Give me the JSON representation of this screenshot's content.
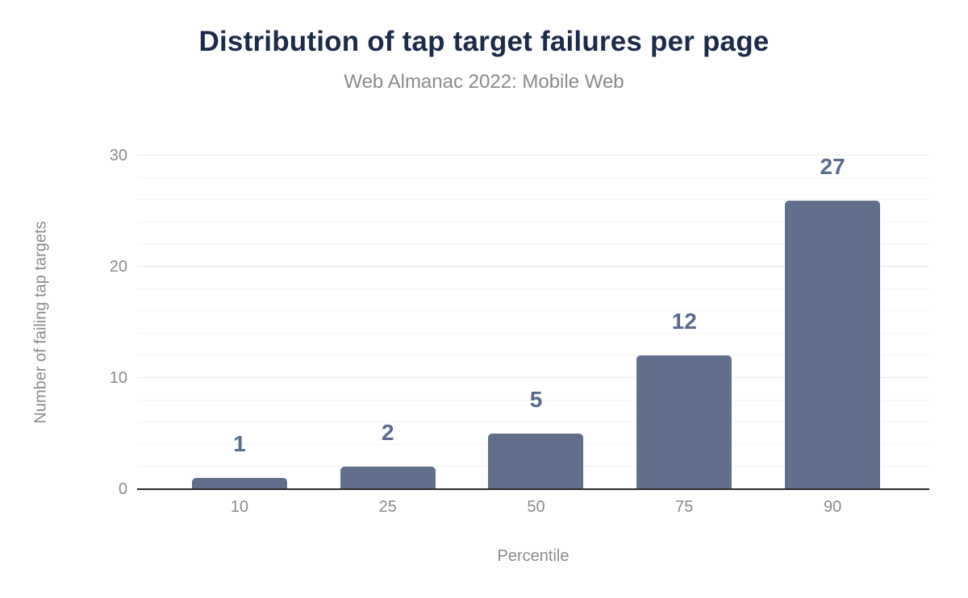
{
  "header": {
    "title": "Distribution of tap target failures per page",
    "subtitle": "Web Almanac 2022: Mobile Web"
  },
  "chart_data": {
    "type": "bar",
    "title": "Distribution of tap target failures per page",
    "subtitle": "Web Almanac 2022: Mobile Web",
    "categories": [
      "10",
      "25",
      "50",
      "75",
      "90"
    ],
    "values": [
      1,
      2,
      5,
      12,
      27
    ],
    "data_labels": [
      "1",
      "2",
      "5",
      "12",
      "27"
    ],
    "xlabel": "Percentile",
    "ylabel": "Number of failing tap targets",
    "ylim": [
      0,
      30
    ],
    "yticks": [
      0,
      10,
      20,
      30
    ],
    "minor_gridline_step": 2,
    "grid": "horizontal",
    "legend": "none",
    "colors": {
      "bar": "#626f8c",
      "data_label": "#5a6a8c",
      "title": "#1c2b4a",
      "subtitle": "#8a8a8a",
      "axis_text": "#8b8b8b",
      "gridline_major": "#e9e9e9",
      "gridline_minor": "#f4f4f4",
      "baseline": "#2b2b2b"
    }
  }
}
